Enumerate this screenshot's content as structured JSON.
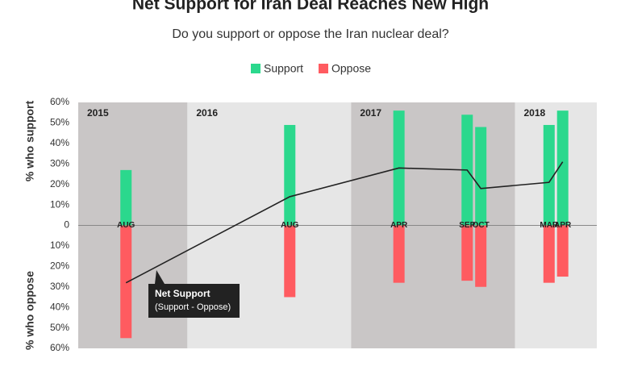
{
  "chart_data": {
    "type": "bar",
    "title": "Net Support for Iran Deal Reaches New High",
    "subtitle": "Do you support or oppose the Iran nuclear deal?",
    "y_label_top": "% who support",
    "y_label_bottom": "% who oppose",
    "annotation": "(Support - Oppose)",
    "categories": [
      "AUG",
      "AUG",
      "APR",
      "SEP",
      "OCT",
      "MAR",
      "APR"
    ],
    "x": [
      "2015-08",
      "2016-08",
      "2017-04",
      "2017-09",
      "2017-10",
      "2018-03",
      "2018-04"
    ],
    "xlim": [
      "2015-05",
      "2018-07"
    ],
    "periods": [
      "2015",
      "2016",
      "2017",
      "2018"
    ],
    "period_colors": [
      "#c9c6c6",
      "#e6e6e6"
    ],
    "series": [
      {
        "name": "Support",
        "color": "#2bd88d",
        "values": [
          27,
          49,
          56,
          54,
          48,
          49,
          56
        ]
      },
      {
        "name": "Oppose",
        "color": "#ff5b60",
        "values": [
          -55,
          -35,
          -28,
          -27,
          -30,
          -28,
          -25
        ]
      },
      {
        "name": "Net Support",
        "type": "line",
        "color": "#222222",
        "values": [
          -28,
          14,
          28,
          27,
          18,
          21,
          31
        ]
      }
    ],
    "ylim": [
      -60,
      60
    ],
    "yticks": [
      {
        "value": 60,
        "label": "60%"
      },
      {
        "value": 50,
        "label": "50%"
      },
      {
        "value": 40,
        "label": "40%"
      },
      {
        "value": 30,
        "label": "30%"
      },
      {
        "value": 20,
        "label": "20%"
      },
      {
        "value": 10,
        "label": "10%"
      },
      0,
      {
        "value": -10,
        "label": "10%"
      },
      {
        "value": -20,
        "label": "20%"
      },
      {
        "value": -30,
        "label": "30%"
      },
      {
        "value": -40,
        "label": "40%"
      },
      {
        "value": -50,
        "label": "50%"
      },
      {
        "value": -60,
        "label": "60%"
      }
    ]
  }
}
